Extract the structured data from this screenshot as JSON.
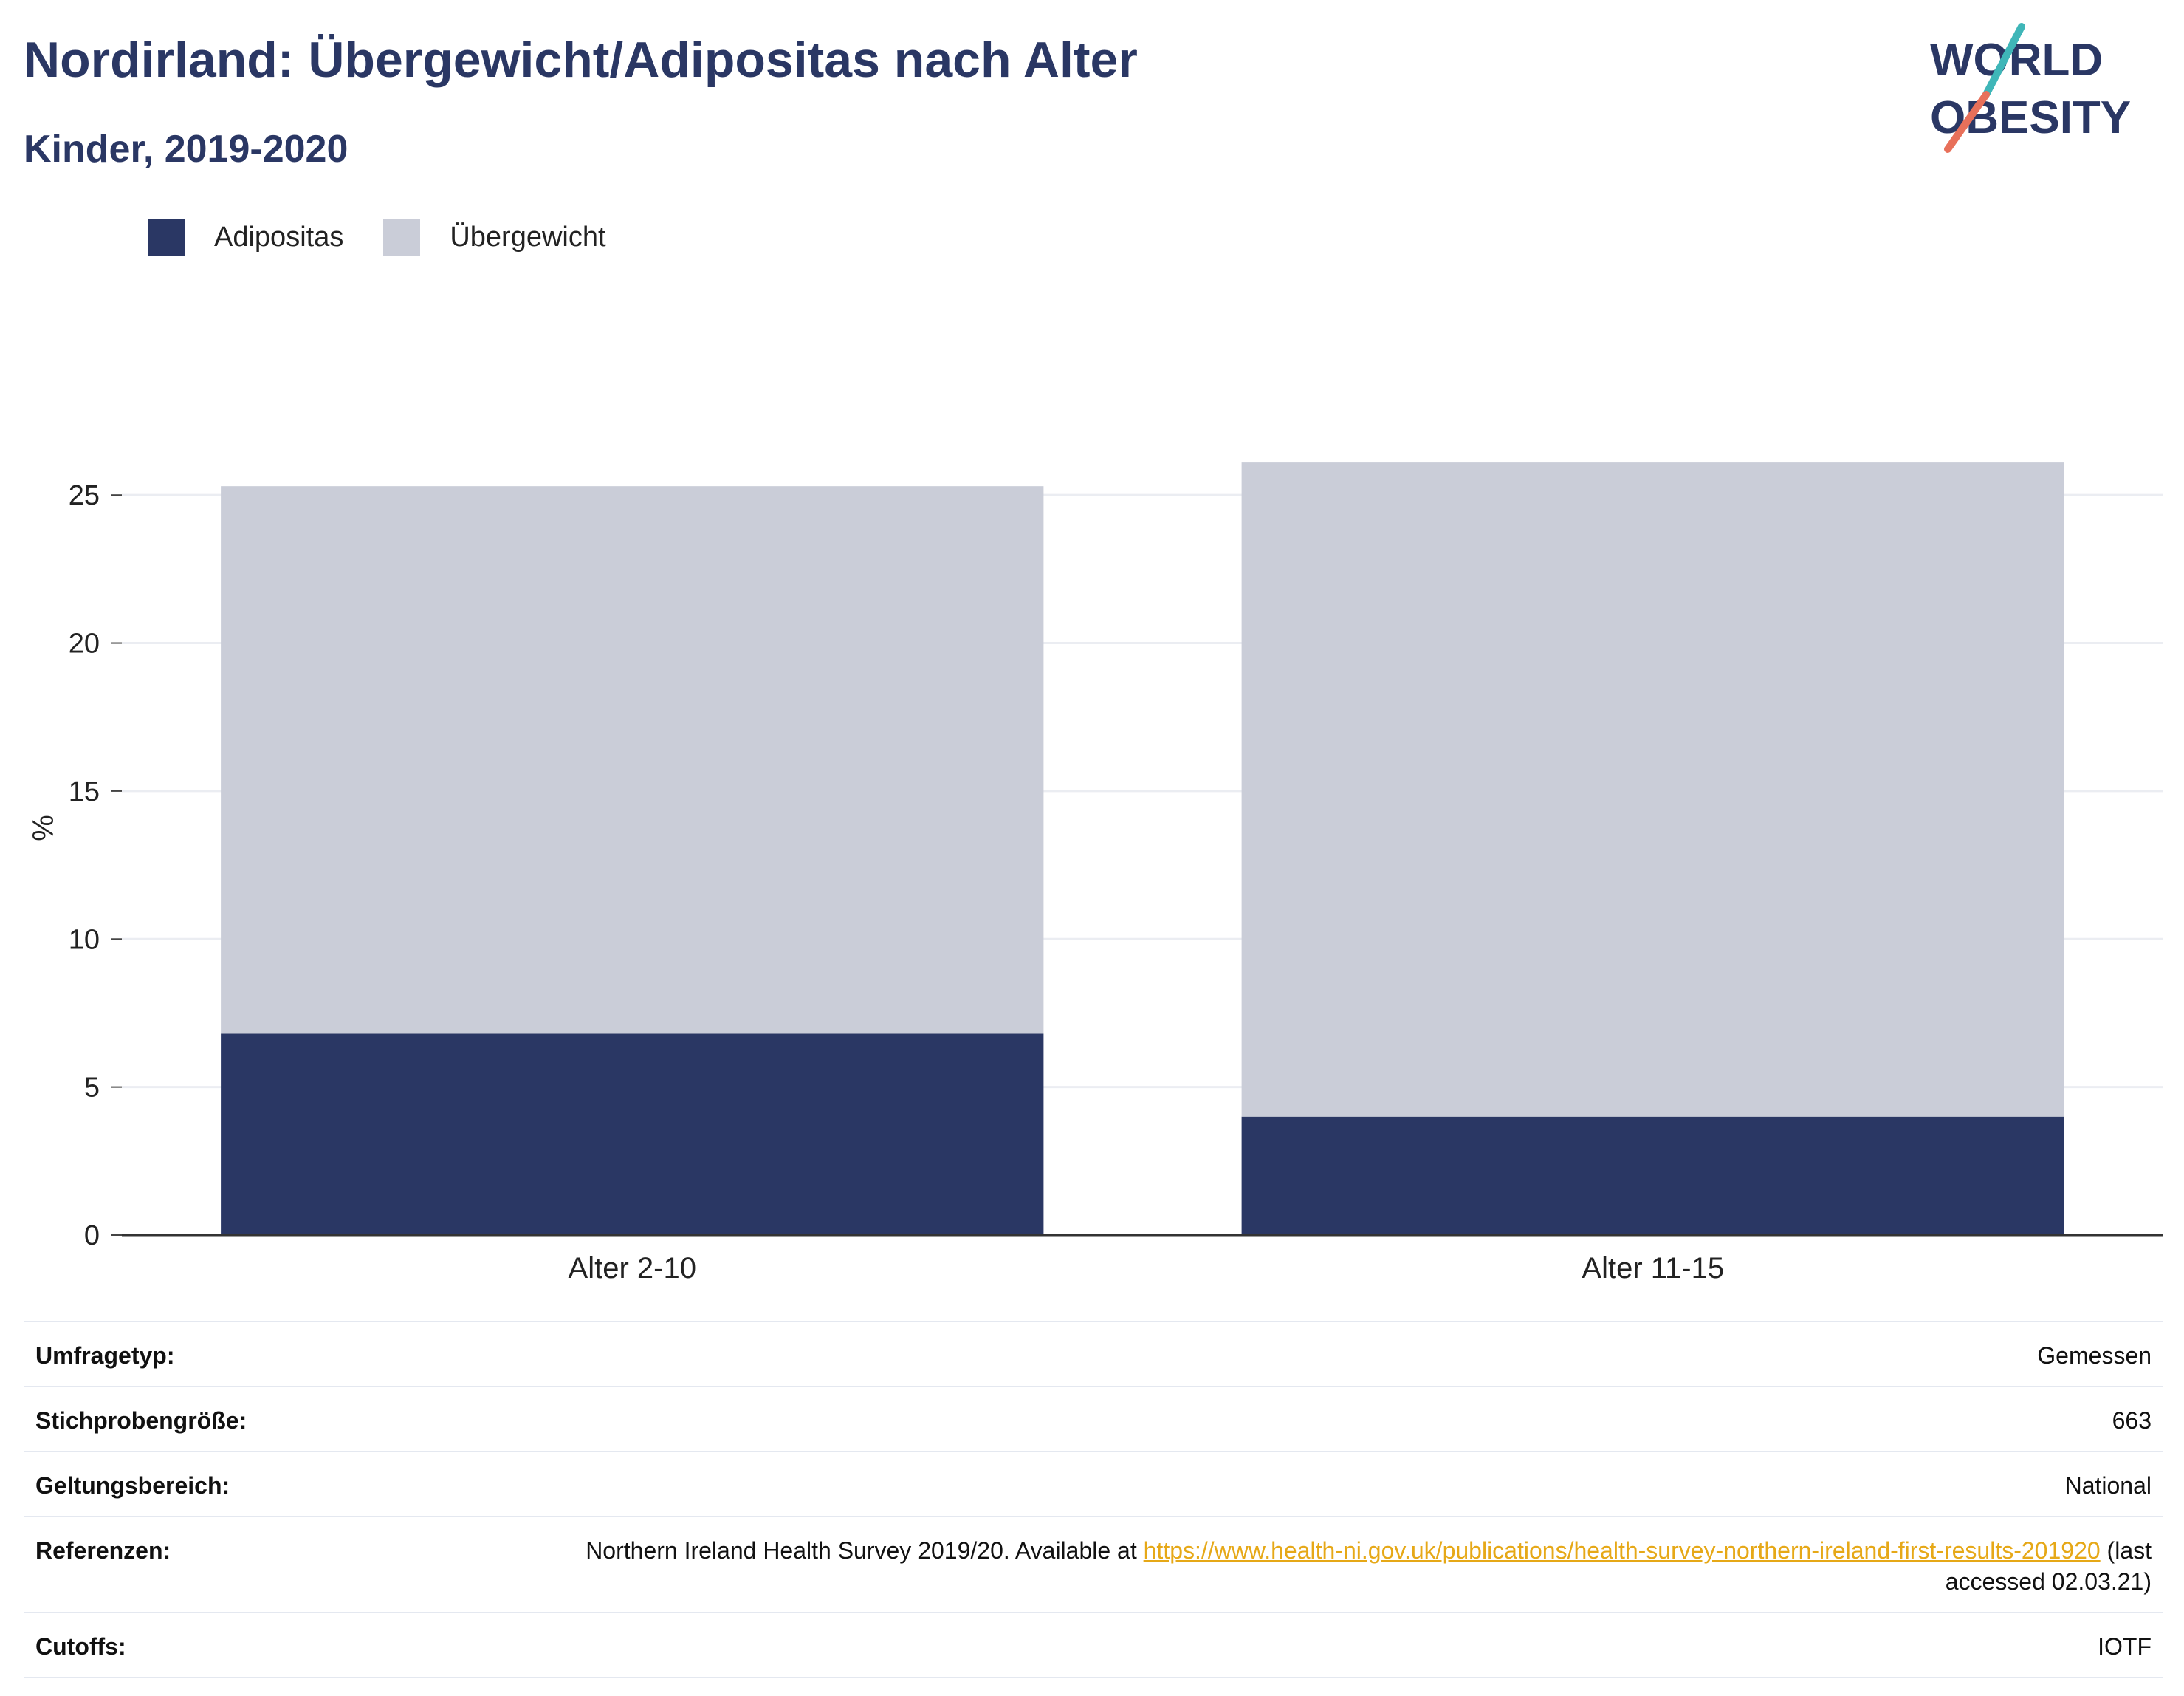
{
  "header": {
    "title": "Nordirland: Übergewicht/Adipositas nach Alter",
    "subtitle": "Kinder, 2019-2020"
  },
  "logo": {
    "line1": "WORLD",
    "line2": "OBESITY"
  },
  "colors": {
    "adipositas": "#2a3764",
    "uebergewicht": "#cacdd8",
    "title": "#2a3764",
    "link": "#e6a817",
    "logo_teal": "#3fb6b8",
    "logo_coral": "#e8705a"
  },
  "chart_data": {
    "type": "bar",
    "stacked": true,
    "title": "Nordirland: Übergewicht/Adipositas nach Alter",
    "subtitle": "Kinder, 2019-2020",
    "categories": [
      "Alter 2-10",
      "Alter 11-15"
    ],
    "series": [
      {
        "name": "Adipositas",
        "values": [
          6.8,
          4.0
        ]
      },
      {
        "name": "Übergewicht",
        "values": [
          18.5,
          22.1
        ]
      }
    ],
    "xlabel": "",
    "ylabel": "%",
    "ylim": [
      0,
      27.5
    ],
    "yticks": [
      0,
      5,
      10,
      15,
      20,
      25
    ],
    "grid": true,
    "legend_position": "top-left"
  },
  "info": {
    "rows": [
      {
        "key": "Umfragetyp:",
        "value": "Gemessen"
      },
      {
        "key": "Stichprobengröße:",
        "value": "663"
      },
      {
        "key": "Geltungsbereich:",
        "value": "National"
      }
    ],
    "reference": {
      "key": "Referenzen:",
      "text_before": "Northern Ireland Health Survey 2019/20. Available at ",
      "link": "https://www.health-ni.gov.uk/publications/health-survey-northern-ireland-first-results-201920",
      "text_after": " (last accessed 02.03.21)"
    },
    "cutoffs": {
      "key": "Cutoffs:",
      "value": "IOTF"
    }
  }
}
